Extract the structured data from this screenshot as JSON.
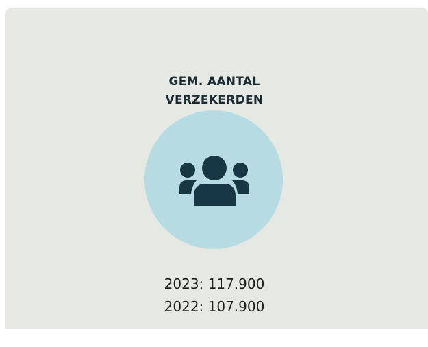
{
  "card": {
    "title": [
      "GEM. AANTAL",
      "VERZEKERDEN"
    ],
    "stats": [
      "2023: 117.900",
      "2022: 107.900"
    ]
  }
}
